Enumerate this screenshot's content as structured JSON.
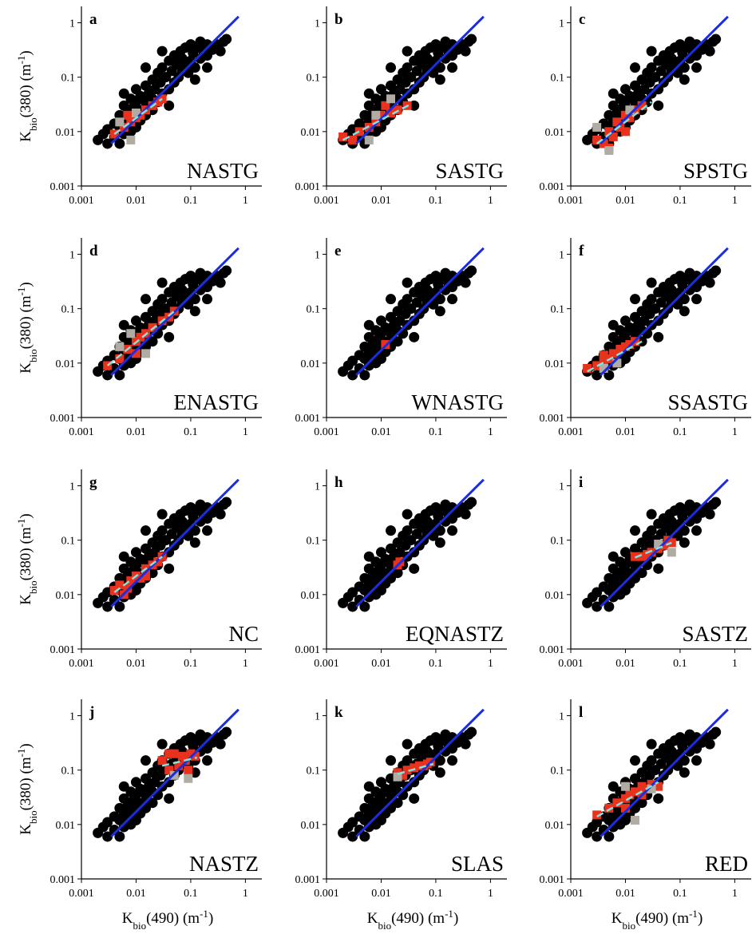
{
  "cloud": {
    "color": "#000000",
    "x": [
      0.002,
      0.0025,
      0.003,
      0.003,
      0.004,
      0.004,
      0.005,
      0.005,
      0.005,
      0.006,
      0.006,
      0.006,
      0.007,
      0.007,
      0.008,
      0.008,
      0.008,
      0.009,
      0.009,
      0.01,
      0.01,
      0.01,
      0.01,
      0.012,
      0.012,
      0.013,
      0.015,
      0.015,
      0.015,
      0.017,
      0.02,
      0.02,
      0.02,
      0.022,
      0.025,
      0.025,
      0.028,
      0.03,
      0.03,
      0.035,
      0.04,
      0.04,
      0.045,
      0.05,
      0.05,
      0.055,
      0.06,
      0.065,
      0.07,
      0.07,
      0.08,
      0.08,
      0.09,
      0.1,
      0.1,
      0.11,
      0.12,
      0.13,
      0.15,
      0.15,
      0.17,
      0.2,
      0.2,
      0.25,
      0.3,
      0.35,
      0.4,
      0.45,
      0.03,
      0.015,
      0.006,
      0.04,
      0.12,
      0.2
    ],
    "y": [
      0.007,
      0.009,
      0.006,
      0.011,
      0.008,
      0.014,
      0.006,
      0.012,
      0.02,
      0.009,
      0.016,
      0.03,
      0.012,
      0.022,
      0.01,
      0.018,
      0.04,
      0.014,
      0.028,
      0.012,
      0.02,
      0.035,
      0.06,
      0.016,
      0.045,
      0.025,
      0.02,
      0.035,
      0.07,
      0.05,
      0.025,
      0.04,
      0.09,
      0.06,
      0.035,
      0.12,
      0.08,
      0.05,
      0.15,
      0.1,
      0.06,
      0.2,
      0.13,
      0.08,
      0.25,
      0.17,
      0.1,
      0.3,
      0.13,
      0.22,
      0.16,
      0.35,
      0.12,
      0.2,
      0.4,
      0.28,
      0.15,
      0.35,
      0.22,
      0.45,
      0.3,
      0.25,
      0.4,
      0.32,
      0.4,
      0.3,
      0.45,
      0.5,
      0.3,
      0.15,
      0.05,
      0.03,
      0.09,
      0.15
    ]
  },
  "chart_data": [
    {
      "type": "scatter",
      "letter": "a",
      "region": "NASTG",
      "ylabel": {
        "main": "K",
        "sub": "bio",
        "mid": "(380)  (m",
        "sup": "-1",
        "end": ")"
      },
      "xlim": [
        0.001,
        2
      ],
      "ylim": [
        0.001,
        2
      ],
      "xticks": [
        0.001,
        0.01,
        0.1,
        1
      ],
      "yticks": [
        0.001,
        0.01,
        0.1,
        1
      ],
      "log_scale": true,
      "reference": {
        "color": "#1a2ee0",
        "x": [
          0.0035,
          0.75
        ],
        "values": [
          0.006,
          1.3
        ]
      },
      "series": [
        {
          "color": "#e8321e",
          "x": [
            0.004,
            0.006,
            0.008,
            0.01,
            0.012,
            0.015,
            0.02,
            0.025,
            0.03,
            0.007
          ],
          "values": [
            0.009,
            0.012,
            0.015,
            0.018,
            0.02,
            0.025,
            0.03,
            0.035,
            0.04,
            0.02
          ]
        },
        {
          "color": "#b0aca4",
          "x": [
            0.005,
            0.01,
            0.008
          ],
          "values": [
            0.015,
            0.022,
            0.007
          ]
        }
      ],
      "fit": {
        "color": "#7fe3e0",
        "x": [
          0.004,
          0.03
        ],
        "values": [
          0.009,
          0.04
        ]
      }
    },
    {
      "type": "scatter",
      "letter": "b",
      "region": "SASTG",
      "xlim": [
        0.001,
        2
      ],
      "ylim": [
        0.001,
        2
      ],
      "xticks": [
        0.001,
        0.01,
        0.1,
        1
      ],
      "yticks": [
        0.001,
        0.01,
        0.1,
        1
      ],
      "log_scale": true,
      "reference": {
        "color": "#1a2ee0",
        "x": [
          0.0035,
          0.75
        ],
        "values": [
          0.006,
          1.3
        ]
      },
      "series": [
        {
          "color": "#e8321e",
          "x": [
            0.002,
            0.003,
            0.004,
            0.006,
            0.008,
            0.01,
            0.015,
            0.02,
            0.03,
            0.012
          ],
          "values": [
            0.008,
            0.007,
            0.01,
            0.012,
            0.015,
            0.02,
            0.022,
            0.025,
            0.03,
            0.03
          ]
        },
        {
          "color": "#b0aca4",
          "x": [
            0.006,
            0.015,
            0.008
          ],
          "values": [
            0.007,
            0.04,
            0.02
          ]
        }
      ],
      "fit": {
        "color": "#7fe3e0",
        "x": [
          0.002,
          0.035
        ],
        "values": [
          0.007,
          0.032
        ]
      }
    },
    {
      "type": "scatter",
      "letter": "c",
      "region": "SPSTG",
      "xlim": [
        0.001,
        2
      ],
      "ylim": [
        0.001,
        2
      ],
      "xticks": [
        0.001,
        0.01,
        0.1,
        1
      ],
      "yticks": [
        0.001,
        0.01,
        0.1,
        1
      ],
      "log_scale": true,
      "reference": {
        "color": "#1a2ee0",
        "x": [
          0.0035,
          0.75
        ],
        "values": [
          0.006,
          1.3
        ]
      },
      "series": [
        {
          "color": "#e8321e",
          "x": [
            0.003,
            0.004,
            0.005,
            0.006,
            0.007,
            0.008,
            0.01,
            0.012,
            0.015,
            0.02,
            0.01,
            0.005
          ],
          "values": [
            0.007,
            0.006,
            0.01,
            0.008,
            0.015,
            0.012,
            0.02,
            0.018,
            0.025,
            0.03,
            0.01,
            0.005
          ]
        },
        {
          "color": "#b0aca4",
          "x": [
            0.003,
            0.005,
            0.012
          ],
          "values": [
            0.012,
            0.0045,
            0.025
          ]
        }
      ],
      "fit": {
        "color": "#7fe3e0",
        "x": [
          0.003,
          0.03
        ],
        "values": [
          0.006,
          0.035
        ]
      }
    },
    {
      "type": "scatter",
      "letter": "d",
      "region": "ENASTG",
      "ylabel": {
        "main": "K",
        "sub": "bio",
        "mid": "(380)  (m",
        "sup": "-1",
        "end": ")"
      },
      "xlim": [
        0.001,
        2
      ],
      "ylim": [
        0.001,
        2
      ],
      "xticks": [
        0.001,
        0.01,
        0.1,
        1
      ],
      "yticks": [
        0.001,
        0.01,
        0.1,
        1
      ],
      "log_scale": true,
      "reference": {
        "color": "#1a2ee0",
        "x": [
          0.0035,
          0.75
        ],
        "values": [
          0.006,
          1.3
        ]
      },
      "series": [
        {
          "color": "#e8321e",
          "x": [
            0.003,
            0.005,
            0.007,
            0.01,
            0.012,
            0.015,
            0.02,
            0.03,
            0.04,
            0.05,
            0.01
          ],
          "values": [
            0.009,
            0.012,
            0.018,
            0.025,
            0.03,
            0.035,
            0.045,
            0.06,
            0.07,
            0.09,
            0.015
          ]
        },
        {
          "color": "#b0aca4",
          "x": [
            0.008,
            0.015,
            0.005
          ],
          "values": [
            0.035,
            0.015,
            0.02
          ]
        }
      ],
      "fit": {
        "color": "#7fe3e0",
        "x": [
          0.003,
          0.05
        ],
        "values": [
          0.009,
          0.09
        ]
      }
    },
    {
      "type": "scatter",
      "letter": "e",
      "region": "WNASTG",
      "xlim": [
        0.001,
        2
      ],
      "ylim": [
        0.001,
        2
      ],
      "xticks": [
        0.001,
        0.01,
        0.1,
        1
      ],
      "yticks": [
        0.001,
        0.01,
        0.1,
        1
      ],
      "log_scale": true,
      "reference": {
        "color": "#1a2ee0",
        "x": [
          0.0035,
          0.75
        ],
        "values": [
          0.006,
          1.3
        ]
      },
      "series": [
        {
          "color": "#e8321e",
          "x": [
            0.012
          ],
          "values": [
            0.022
          ]
        }
      ]
    },
    {
      "type": "scatter",
      "letter": "f",
      "region": "SSASTG",
      "xlim": [
        0.001,
        2
      ],
      "ylim": [
        0.001,
        2
      ],
      "xticks": [
        0.001,
        0.01,
        0.1,
        1
      ],
      "yticks": [
        0.001,
        0.01,
        0.1,
        1
      ],
      "log_scale": true,
      "reference": {
        "color": "#1a2ee0",
        "x": [
          0.0035,
          0.75
        ],
        "values": [
          0.006,
          1.3
        ]
      },
      "series": [
        {
          "color": "#e8321e",
          "x": [
            0.002,
            0.003,
            0.004,
            0.005,
            0.006,
            0.008,
            0.01,
            0.012,
            0.015,
            0.004
          ],
          "values": [
            0.008,
            0.009,
            0.01,
            0.012,
            0.015,
            0.018,
            0.02,
            0.022,
            0.025,
            0.014
          ]
        },
        {
          "color": "#b0aca4",
          "x": [
            0.004,
            0.007
          ],
          "values": [
            0.008,
            0.01
          ]
        }
      ],
      "fit": {
        "color": "#7fe3e0",
        "x": [
          0.002,
          0.02
        ],
        "values": [
          0.007,
          0.025
        ]
      }
    },
    {
      "type": "scatter",
      "letter": "g",
      "region": "NC",
      "ylabel": {
        "main": "K",
        "sub": "bio",
        "mid": "(380)  (m",
        "sup": "-1",
        "end": ")"
      },
      "xlim": [
        0.001,
        2
      ],
      "ylim": [
        0.001,
        2
      ],
      "xticks": [
        0.001,
        0.01,
        0.1,
        1
      ],
      "yticks": [
        0.001,
        0.01,
        0.1,
        1
      ],
      "log_scale": true,
      "reference": {
        "color": "#1a2ee0",
        "x": [
          0.0035,
          0.75
        ],
        "values": [
          0.006,
          1.3
        ]
      },
      "series": [
        {
          "color": "#e8321e",
          "x": [
            0.004,
            0.005,
            0.006,
            0.008,
            0.01,
            0.012,
            0.015,
            0.02,
            0.025,
            0.03,
            0.007,
            0.015
          ],
          "values": [
            0.012,
            0.015,
            0.01,
            0.018,
            0.022,
            0.02,
            0.03,
            0.035,
            0.04,
            0.05,
            0.013,
            0.022
          ]
        }
      ],
      "fit": {
        "color": "#7fe3e0",
        "x": [
          0.004,
          0.03
        ],
        "values": [
          0.011,
          0.05
        ]
      }
    },
    {
      "type": "scatter",
      "letter": "h",
      "region": "EQNASTZ",
      "xlim": [
        0.001,
        2
      ],
      "ylim": [
        0.001,
        2
      ],
      "xticks": [
        0.001,
        0.01,
        0.1,
        1
      ],
      "yticks": [
        0.001,
        0.01,
        0.1,
        1
      ],
      "log_scale": true,
      "reference": {
        "color": "#1a2ee0",
        "x": [
          0.0035,
          0.75
        ],
        "values": [
          0.006,
          1.3
        ]
      },
      "series": [
        {
          "color": "#e8321e",
          "x": [
            0.02,
            0.022
          ],
          "values": [
            0.035,
            0.04
          ]
        }
      ]
    },
    {
      "type": "scatter",
      "letter": "i",
      "region": "SASTZ",
      "xlim": [
        0.001,
        2
      ],
      "ylim": [
        0.001,
        2
      ],
      "xticks": [
        0.001,
        0.01,
        0.1,
        1
      ],
      "yticks": [
        0.001,
        0.01,
        0.1,
        1
      ],
      "log_scale": true,
      "reference": {
        "color": "#1a2ee0",
        "x": [
          0.0035,
          0.75
        ],
        "values": [
          0.006,
          1.3
        ]
      },
      "series": [
        {
          "color": "#e8321e",
          "x": [
            0.015,
            0.02,
            0.03,
            0.04,
            0.05,
            0.06,
            0.07,
            0.025
          ],
          "values": [
            0.05,
            0.05,
            0.06,
            0.07,
            0.08,
            0.1,
            0.09,
            0.055
          ]
        },
        {
          "color": "#b0aca4",
          "x": [
            0.07,
            0.04
          ],
          "values": [
            0.06,
            0.085
          ]
        }
      ],
      "fit": {
        "color": "#7fe3e0",
        "x": [
          0.015,
          0.07
        ],
        "values": [
          0.048,
          0.09
        ]
      }
    },
    {
      "type": "scatter",
      "letter": "j",
      "region": "NASTZ",
      "ylabel": {
        "main": "K",
        "sub": "bio",
        "mid": "(380)  (m",
        "sup": "-1",
        "end": ")"
      },
      "xlabel": {
        "main": "K",
        "sub": "bio",
        "mid": "(490)  (m",
        "sup": "-1",
        "end": ")"
      },
      "xlim": [
        0.001,
        2
      ],
      "ylim": [
        0.001,
        2
      ],
      "xticks": [
        0.001,
        0.01,
        0.1,
        1
      ],
      "yticks": [
        0.001,
        0.01,
        0.1,
        1
      ],
      "log_scale": true,
      "reference": {
        "color": "#1a2ee0",
        "x": [
          0.0035,
          0.75
        ],
        "values": [
          0.006,
          1.3
        ]
      },
      "series": [
        {
          "color": "#e8321e",
          "x": [
            0.03,
            0.04,
            0.05,
            0.06,
            0.07,
            0.08,
            0.1,
            0.12,
            0.04,
            0.09
          ],
          "values": [
            0.15,
            0.1,
            0.2,
            0.12,
            0.18,
            0.15,
            0.2,
            0.18,
            0.2,
            0.1
          ]
        },
        {
          "color": "#b0aca4",
          "x": [
            0.05,
            0.09
          ],
          "values": [
            0.08,
            0.07
          ]
        }
      ],
      "fit": {
        "color": "#7fe3e0",
        "x": [
          0.03,
          0.13
        ],
        "values": [
          0.12,
          0.17
        ]
      }
    },
    {
      "type": "scatter",
      "letter": "k",
      "region": "SLAS",
      "xlabel": {
        "main": "K",
        "sub": "bio",
        "mid": "(490)  (m",
        "sup": "-1",
        "end": ")"
      },
      "xlim": [
        0.001,
        2
      ],
      "ylim": [
        0.001,
        2
      ],
      "xticks": [
        0.001,
        0.01,
        0.1,
        1
      ],
      "yticks": [
        0.001,
        0.01,
        0.1,
        1
      ],
      "log_scale": true,
      "reference": {
        "color": "#1a2ee0",
        "x": [
          0.0035,
          0.75
        ],
        "values": [
          0.006,
          1.3
        ]
      },
      "series": [
        {
          "color": "#e8321e",
          "x": [
            0.02,
            0.03,
            0.04,
            0.05,
            0.06,
            0.07,
            0.08,
            0.025
          ],
          "values": [
            0.09,
            0.1,
            0.11,
            0.12,
            0.12,
            0.13,
            0.14,
            0.08
          ]
        },
        {
          "color": "#b0aca4",
          "x": [
            0.02
          ],
          "values": [
            0.075
          ]
        }
      ],
      "fit": {
        "color": "#7fe3e0",
        "x": [
          0.02,
          0.09
        ],
        "values": [
          0.085,
          0.13
        ]
      }
    },
    {
      "type": "scatter",
      "letter": "l",
      "region": "RED",
      "xlabel": {
        "main": "K",
        "sub": "bio",
        "mid": "(490)  (m",
        "sup": "-1",
        "end": ")"
      },
      "xlim": [
        0.001,
        2
      ],
      "ylim": [
        0.001,
        2
      ],
      "xticks": [
        0.001,
        0.01,
        0.1,
        1
      ],
      "yticks": [
        0.001,
        0.01,
        0.1,
        1
      ],
      "log_scale": true,
      "reference": {
        "color": "#1a2ee0",
        "x": [
          0.0035,
          0.75
        ],
        "values": [
          0.006,
          1.3
        ]
      },
      "series": [
        {
          "color": "#e8321e",
          "x": [
            0.003,
            0.005,
            0.007,
            0.01,
            0.012,
            0.015,
            0.02,
            0.025,
            0.03,
            0.04,
            0.02,
            0.01
          ],
          "values": [
            0.015,
            0.02,
            0.025,
            0.03,
            0.035,
            0.04,
            0.05,
            0.045,
            0.055,
            0.05,
            0.035,
            0.02
          ]
        },
        {
          "color": "#b0aca4",
          "x": [
            0.03,
            0.015,
            0.01
          ],
          "values": [
            0.045,
            0.012,
            0.05
          ]
        }
      ],
      "fit": {
        "color": "#7fe3e0",
        "x": [
          0.003,
          0.04
        ],
        "values": [
          0.014,
          0.06
        ]
      }
    }
  ]
}
